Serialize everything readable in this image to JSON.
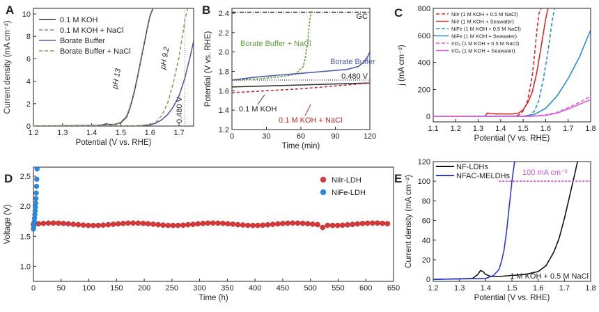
{
  "figure": {
    "panels": [
      "A",
      "B",
      "C",
      "D",
      "E"
    ]
  },
  "chart_data": [
    {
      "panel": "A",
      "type": "line",
      "xlabel": "Potential (V vs. RHE)",
      "ylabel": "Current density (mA cm⁻²)",
      "xlim": [
        1.2,
        1.75
      ],
      "ylim": [
        0,
        10.5
      ],
      "xticks": [
        1.2,
        1.3,
        1.4,
        1.5,
        1.6,
        1.7
      ],
      "yticks": [
        0,
        2,
        4,
        6,
        8,
        10
      ],
      "annotations": [
        "pH 13",
        "pH 9.2",
        "0.480 V"
      ],
      "series": [
        {
          "name": "0.1 M KOH",
          "color": "#333333",
          "dash": "",
          "x": [
            1.2,
            1.42,
            1.44,
            1.45,
            1.46,
            1.47,
            1.48,
            1.5,
            1.52,
            1.53,
            1.54,
            1.55,
            1.56,
            1.57,
            1.58,
            1.59,
            1.6,
            1.61
          ],
          "y": [
            0,
            0.05,
            0.12,
            0.2,
            0.15,
            0.13,
            0.15,
            0.3,
            0.8,
            1.5,
            2.4,
            3.5,
            4.7,
            6.0,
            7.3,
            8.6,
            9.8,
            10.5
          ]
        },
        {
          "name": "0.1 M KOH + NaCl",
          "color": "#9a7a7a",
          "dash": "5,3",
          "x": [
            1.2,
            1.44,
            1.46,
            1.48,
            1.5,
            1.52,
            1.53,
            1.54,
            1.55,
            1.56,
            1.57,
            1.58,
            1.59,
            1.6,
            1.61
          ],
          "y": [
            0,
            0.08,
            0.15,
            0.15,
            0.35,
            0.9,
            1.6,
            2.5,
            3.6,
            4.8,
            6.1,
            7.4,
            8.7,
            9.9,
            10.5
          ]
        },
        {
          "name": "Borate Buffer",
          "color": "#5a5aa0",
          "dash": "",
          "x": [
            1.2,
            1.55,
            1.6,
            1.62,
            1.64,
            1.66,
            1.68,
            1.7,
            1.72,
            1.74,
            1.76
          ],
          "y": [
            0,
            0.02,
            0.1,
            0.25,
            0.55,
            1.0,
            1.7,
            2.7,
            4.3,
            6.4,
            8.8
          ]
        },
        {
          "name": "Borate Buffer + NaCl",
          "color": "#8e9a6a",
          "dash": "5,3",
          "x": [
            1.2,
            1.56,
            1.6,
            1.62,
            1.64,
            1.66,
            1.68,
            1.7,
            1.71,
            1.72,
            1.73
          ],
          "y": [
            0,
            0.02,
            0.15,
            0.35,
            0.9,
            2.0,
            3.8,
            6.2,
            7.8,
            9.5,
            10.5
          ]
        }
      ]
    },
    {
      "panel": "B",
      "type": "line",
      "xlabel": "Time (min)",
      "ylabel": "Potential (V vs. RHE)",
      "xlim": [
        0,
        120
      ],
      "ylim": [
        1.2,
        2.45
      ],
      "xticks": [
        0,
        30,
        60,
        90,
        120
      ],
      "yticks": [
        1.2,
        1.4,
        1.6,
        1.8,
        2.0,
        2.2,
        2.4
      ],
      "annotations": [
        "GC",
        "0.480 V"
      ],
      "labels": [
        "Borate Buffer + NaCl",
        "Borate Buffer",
        "0.1 M KOH",
        "0.1 M KOH + NaCl"
      ],
      "series": [
        {
          "name": "GC",
          "color": "#333333",
          "dash": "6,2,1,2",
          "x": [
            0,
            120
          ],
          "y": [
            2.41,
            2.41
          ]
        },
        {
          "name": "Borate Buffer + NaCl",
          "color": "#5aa03a",
          "dash": "3,2",
          "x": [
            0,
            20,
            40,
            55,
            62,
            64,
            66,
            67,
            68,
            69,
            70
          ],
          "y": [
            1.71,
            1.72,
            1.74,
            1.77,
            1.85,
            1.95,
            2.1,
            2.25,
            2.35,
            2.41,
            2.42
          ]
        },
        {
          "name": "Borate Buffer",
          "color": "#4a5aa8",
          "dash": "",
          "x": [
            0,
            20,
            40,
            60,
            80,
            100,
            110,
            115,
            118,
            120
          ],
          "y": [
            1.71,
            1.74,
            1.76,
            1.78,
            1.8,
            1.82,
            1.85,
            1.9,
            1.95,
            2.0
          ]
        },
        {
          "name": "0.1 M KOH",
          "color": "#333333",
          "dash": "",
          "x": [
            0,
            30,
            60,
            90,
            120
          ],
          "y": [
            1.64,
            1.65,
            1.66,
            1.67,
            1.68
          ]
        },
        {
          "name": "0.1 M KOH + NaCl",
          "color": "#b03030",
          "dash": "4,3",
          "x": [
            0,
            30,
            60,
            90,
            120
          ],
          "y": [
            1.58,
            1.6,
            1.62,
            1.65,
            1.68
          ]
        },
        {
          "name": "0.480 V ref",
          "color": "#555555",
          "dash": "1,2",
          "x": [
            0,
            120
          ],
          "y": [
            1.71,
            1.71
          ]
        }
      ]
    },
    {
      "panel": "C",
      "type": "line",
      "xlabel": "Potential (V vs. RHE)",
      "ylabel": "j (mA cm⁻²)",
      "xlim": [
        1.1,
        1.8
      ],
      "ylim": [
        -40,
        800
      ],
      "xticks": [
        1.1,
        1.2,
        1.3,
        1.4,
        1.5,
        1.6,
        1.7,
        1.8
      ],
      "yticks": [
        0,
        200,
        400,
        600,
        800
      ],
      "series": [
        {
          "name": "NiIr (1 M KOH + 0.5 M NaCl)",
          "color": "#d42c2c",
          "dash": "5,3",
          "x": [
            1.1,
            1.45,
            1.48,
            1.5,
            1.52,
            1.54,
            1.55,
            1.56,
            1.57,
            1.58
          ],
          "y": [
            0,
            0,
            10,
            40,
            120,
            300,
            450,
            620,
            760,
            800
          ]
        },
        {
          "name": "NiIr (1 M KOH + Seawater)",
          "color": "#d42c2c",
          "dash": "",
          "x": [
            1.1,
            1.33,
            1.34,
            1.36,
            1.38,
            1.4,
            1.45,
            1.48,
            1.5,
            1.52,
            1.54,
            1.56,
            1.58,
            1.6,
            1.61
          ],
          "y": [
            0,
            0,
            25,
            22,
            18,
            20,
            18,
            25,
            50,
            100,
            180,
            320,
            520,
            720,
            800
          ]
        },
        {
          "name": "NiFe (1 M KOH + 0.5 M NaCl)",
          "color": "#2a8ad4",
          "dash": "5,3",
          "x": [
            1.1,
            1.5,
            1.53,
            1.55,
            1.57,
            1.59,
            1.61,
            1.62,
            1.63,
            1.64
          ],
          "y": [
            0,
            0,
            10,
            40,
            120,
            280,
            480,
            600,
            720,
            800
          ]
        },
        {
          "name": "NiFe (1 M KOH + Seawater)",
          "color": "#2a8ad4",
          "dash": "",
          "x": [
            1.1,
            1.5,
            1.55,
            1.6,
            1.65,
            1.7,
            1.75,
            1.8
          ],
          "y": [
            0,
            2,
            15,
            60,
            150,
            280,
            440,
            640
          ]
        },
        {
          "name": "IrO₂ (1 M KOH + 0.5 M NaCl)",
          "color": "#e060d8",
          "dash": "5,3",
          "x": [
            1.1,
            1.5,
            1.55,
            1.6,
            1.65,
            1.7,
            1.75,
            1.8
          ],
          "y": [
            0,
            0,
            3,
            12,
            30,
            65,
            105,
            150
          ]
        },
        {
          "name": "IrO₂ (1 M KOH + Seawater)",
          "color": "#e060d8",
          "dash": "",
          "x": [
            1.1,
            1.5,
            1.55,
            1.6,
            1.65,
            1.7,
            1.75,
            1.8
          ],
          "y": [
            0,
            0,
            2,
            8,
            25,
            55,
            90,
            125
          ]
        }
      ]
    },
    {
      "panel": "D",
      "type": "scatter",
      "xlabel": "Time (h)",
      "ylabel": "Voltage (V)",
      "xlim": [
        0,
        650
      ],
      "ylim": [
        0.75,
        2.65
      ],
      "xticks": [
        0,
        50,
        100,
        150,
        200,
        250,
        300,
        350,
        400,
        450,
        500,
        550,
        600,
        650
      ],
      "yticks": [
        1.0,
        1.5,
        2.0,
        2.5
      ],
      "legend": "top-right",
      "series": [
        {
          "name": "NiIr-LDH",
          "color": "#d43a3a",
          "x_start": 0,
          "x_end": 645,
          "x_step": 9,
          "baseline": 1.7,
          "note": "stable ~1.68–1.73 V over 650 h"
        },
        {
          "name": "NiFe-LDH",
          "color": "#2a8ae0",
          "x": [
            0,
            0.5,
            1,
            1.5,
            2,
            2.5,
            3,
            3.5,
            4,
            4.5,
            5,
            5.5,
            6,
            6.5
          ],
          "y": [
            1.62,
            1.66,
            1.7,
            1.74,
            1.8,
            1.86,
            1.92,
            1.98,
            2.05,
            2.13,
            2.22,
            2.33,
            2.45,
            2.62
          ]
        }
      ]
    },
    {
      "panel": "E",
      "type": "line",
      "xlabel": "Potential (V vs. RHE)",
      "ylabel": "Current density (mA cm⁻²)",
      "xlim": [
        1.2,
        1.8
      ],
      "ylim": [
        -2,
        120
      ],
      "xticks": [
        1.2,
        1.3,
        1.4,
        1.5,
        1.6,
        1.7,
        1.8
      ],
      "yticks": [
        0,
        20,
        40,
        60,
        80,
        100,
        120
      ],
      "annotations": [
        "100 mA cm⁻²",
        "1 M KOH + 0.5 M NaCl"
      ],
      "series": [
        {
          "name": "NF-LDHs",
          "color": "#111111",
          "dash": "",
          "x": [
            1.2,
            1.35,
            1.37,
            1.38,
            1.39,
            1.4,
            1.42,
            1.45,
            1.5,
            1.55,
            1.6,
            1.63,
            1.66,
            1.68,
            1.7,
            1.72,
            1.74,
            1.75
          ],
          "y": [
            0,
            1,
            5,
            9,
            8,
            5,
            3,
            3,
            4,
            5,
            8,
            14,
            28,
            42,
            62,
            85,
            108,
            120
          ]
        },
        {
          "name": "NFAC-MELDHs",
          "color": "#2a3ad0",
          "dash": "",
          "x": [
            1.2,
            1.4,
            1.43,
            1.45,
            1.46,
            1.47,
            1.48,
            1.49,
            1.5,
            1.51
          ],
          "y": [
            0,
            1,
            4,
            10,
            18,
            30,
            50,
            75,
            100,
            120
          ]
        },
        {
          "name": "100 mA cm-2 ref",
          "color": "#d84ad4",
          "dash": "3,2",
          "x": [
            1.45,
            1.8
          ],
          "y": [
            100,
            100
          ]
        }
      ]
    }
  ]
}
